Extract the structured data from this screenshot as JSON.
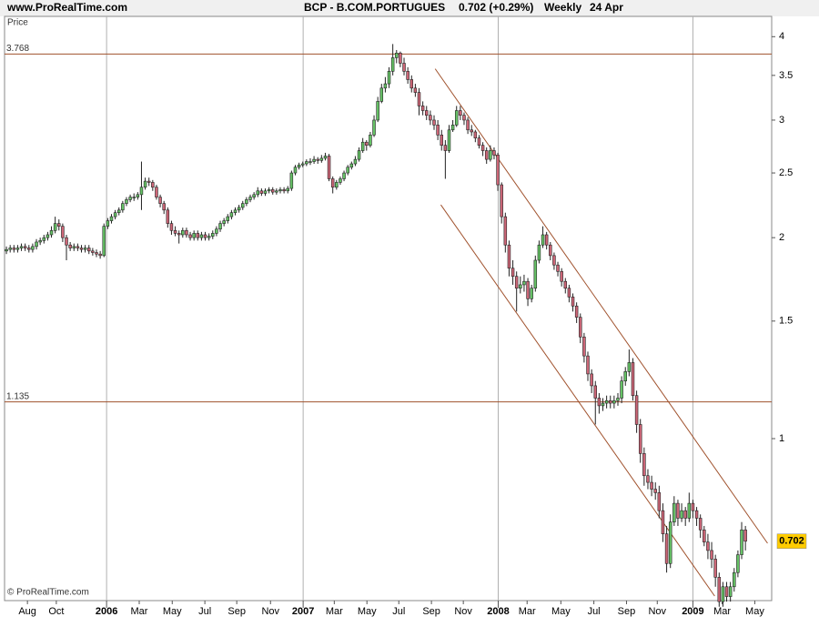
{
  "header": {
    "site": "www.ProRealTime.com",
    "symbol": "BCP - B.COM.PORTUGUES",
    "quote": "0.702 (+0.29%)",
    "period": "Weekly",
    "date": "24 Apr",
    "copyright": "© ProRealTime.com"
  },
  "chart_data": {
    "type": "candlestick",
    "y_label": "Price",
    "log": true,
    "ylim": [
      0.572,
      4.29
    ],
    "yticks": [
      1,
      1.5,
      2,
      2.5,
      3,
      3.5,
      4
    ],
    "xlim": [
      -0.5,
      204
    ],
    "xticks": [
      {
        "value": 5.6,
        "label": "Aug"
      },
      {
        "value": 13.3,
        "label": "Oct"
      },
      {
        "value": 26.7,
        "label": "2006"
      },
      {
        "value": 35.4,
        "label": "Mar"
      },
      {
        "value": 44.2,
        "label": "May"
      },
      {
        "value": 52.9,
        "label": "Jul"
      },
      {
        "value": 61.4,
        "label": "Sep"
      },
      {
        "value": 70.4,
        "label": "Nov"
      },
      {
        "value": 79.1,
        "label": "2007"
      },
      {
        "value": 87.4,
        "label": "Mar"
      },
      {
        "value": 96.1,
        "label": "May"
      },
      {
        "value": 104.6,
        "label": "Jul"
      },
      {
        "value": 113.3,
        "label": "Sep"
      },
      {
        "value": 121.8,
        "label": "Nov"
      },
      {
        "value": 131.1,
        "label": "2008"
      },
      {
        "value": 138.8,
        "label": "Mar"
      },
      {
        "value": 147.8,
        "label": "May"
      },
      {
        "value": 156.6,
        "label": "Jul"
      },
      {
        "value": 165.3,
        "label": "Sep"
      },
      {
        "value": 173.5,
        "label": "Nov"
      },
      {
        "value": 183,
        "label": "2009"
      },
      {
        "value": 190.8,
        "label": "Mar"
      },
      {
        "value": 199.5,
        "label": "May"
      }
    ],
    "up_color": "#66c266",
    "down_color": "#cc6677",
    "line_color": "#a0522d",
    "hlines": [
      3.768,
      1.135
    ],
    "trendlines": [
      {
        "x": [
          114.3,
          202.9
        ],
        "y": [
          3.58,
          0.697
        ]
      },
      {
        "x": [
          115.8,
          188.8
        ],
        "y": [
          2.24,
          0.581
        ]
      }
    ],
    "candles": [
      [
        1.91,
        1.94,
        1.89,
        1.92
      ],
      [
        1.92,
        1.95,
        1.9,
        1.93
      ],
      [
        1.93,
        1.95,
        1.9,
        1.92
      ],
      [
        1.92,
        1.95,
        1.9,
        1.93
      ],
      [
        1.93,
        1.96,
        1.91,
        1.94
      ],
      [
        1.94,
        1.96,
        1.91,
        1.93
      ],
      [
        1.93,
        1.95,
        1.9,
        1.92
      ],
      [
        1.92,
        1.96,
        1.9,
        1.94
      ],
      [
        1.94,
        1.99,
        1.92,
        1.97
      ],
      [
        1.97,
        2.0,
        1.95,
        1.98
      ],
      [
        1.98,
        2.02,
        1.96,
        2.0
      ],
      [
        2.0,
        2.04,
        1.98,
        2.02
      ],
      [
        2.02,
        2.08,
        2.0,
        2.05
      ],
      [
        2.05,
        2.15,
        2.03,
        2.1
      ],
      [
        2.1,
        2.13,
        2.05,
        2.08
      ],
      [
        2.08,
        2.1,
        1.97,
        2.0
      ],
      [
        2.0,
        2.02,
        1.85,
        1.95
      ],
      [
        1.95,
        1.97,
        1.91,
        1.93
      ],
      [
        1.93,
        1.96,
        1.91,
        1.94
      ],
      [
        1.94,
        1.96,
        1.91,
        1.93
      ],
      [
        1.93,
        1.95,
        1.9,
        1.92
      ],
      [
        1.92,
        1.95,
        1.9,
        1.93
      ],
      [
        1.93,
        1.95,
        1.89,
        1.91
      ],
      [
        1.91,
        1.93,
        1.88,
        1.9
      ],
      [
        1.9,
        1.92,
        1.87,
        1.89
      ],
      [
        1.89,
        1.91,
        1.86,
        1.88
      ],
      [
        1.88,
        2.1,
        1.87,
        2.08
      ],
      [
        2.08,
        2.14,
        2.06,
        2.12
      ],
      [
        2.12,
        2.17,
        2.1,
        2.15
      ],
      [
        2.15,
        2.2,
        2.13,
        2.18
      ],
      [
        2.18,
        2.22,
        2.16,
        2.2
      ],
      [
        2.2,
        2.27,
        2.18,
        2.25
      ],
      [
        2.25,
        2.3,
        2.23,
        2.28
      ],
      [
        2.28,
        2.32,
        2.26,
        2.3
      ],
      [
        2.3,
        2.33,
        2.27,
        2.3
      ],
      [
        2.3,
        2.34,
        2.28,
        2.32
      ],
      [
        2.32,
        2.6,
        2.2,
        2.38
      ],
      [
        2.38,
        2.46,
        2.36,
        2.43
      ],
      [
        2.43,
        2.46,
        2.39,
        2.42
      ],
      [
        2.42,
        2.44,
        2.35,
        2.38
      ],
      [
        2.38,
        2.4,
        2.28,
        2.3
      ],
      [
        2.3,
        2.32,
        2.22,
        2.25
      ],
      [
        2.25,
        2.27,
        2.17,
        2.2
      ],
      [
        2.2,
        2.22,
        2.07,
        2.1
      ],
      [
        2.1,
        2.12,
        2.02,
        2.05
      ],
      [
        2.05,
        2.08,
        2.01,
        2.03
      ],
      [
        2.03,
        2.05,
        1.96,
        2.02
      ],
      [
        2.02,
        2.07,
        2.0,
        2.05
      ],
      [
        2.05,
        2.07,
        2.0,
        2.02
      ],
      [
        2.02,
        2.04,
        1.98,
        2.0
      ],
      [
        2.0,
        2.05,
        1.98,
        2.03
      ],
      [
        2.03,
        2.05,
        1.98,
        2.0
      ],
      [
        2.0,
        2.04,
        1.98,
        2.02
      ],
      [
        2.02,
        2.04,
        1.98,
        2.0
      ],
      [
        2.0,
        2.03,
        1.98,
        2.01
      ],
      [
        2.01,
        2.05,
        1.99,
        2.03
      ],
      [
        2.03,
        2.08,
        2.01,
        2.06
      ],
      [
        2.06,
        2.12,
        2.04,
        2.1
      ],
      [
        2.1,
        2.14,
        2.08,
        2.12
      ],
      [
        2.12,
        2.17,
        2.1,
        2.15
      ],
      [
        2.15,
        2.2,
        2.13,
        2.18
      ],
      [
        2.18,
        2.22,
        2.16,
        2.2
      ],
      [
        2.2,
        2.24,
        2.18,
        2.22
      ],
      [
        2.22,
        2.27,
        2.2,
        2.25
      ],
      [
        2.25,
        2.3,
        2.23,
        2.28
      ],
      [
        2.28,
        2.32,
        2.26,
        2.3
      ],
      [
        2.3,
        2.34,
        2.28,
        2.32
      ],
      [
        2.32,
        2.38,
        2.3,
        2.35
      ],
      [
        2.35,
        2.37,
        2.31,
        2.33
      ],
      [
        2.33,
        2.37,
        2.31,
        2.35
      ],
      [
        2.35,
        2.38,
        2.33,
        2.36
      ],
      [
        2.36,
        2.38,
        2.32,
        2.34
      ],
      [
        2.34,
        2.37,
        2.32,
        2.35
      ],
      [
        2.35,
        2.38,
        2.33,
        2.36
      ],
      [
        2.36,
        2.38,
        2.33,
        2.35
      ],
      [
        2.35,
        2.39,
        2.33,
        2.37
      ],
      [
        2.37,
        2.52,
        2.35,
        2.5
      ],
      [
        2.5,
        2.57,
        2.48,
        2.55
      ],
      [
        2.55,
        2.59,
        2.53,
        2.57
      ],
      [
        2.57,
        2.6,
        2.55,
        2.58
      ],
      [
        2.58,
        2.62,
        2.56,
        2.6
      ],
      [
        2.6,
        2.63,
        2.57,
        2.6
      ],
      [
        2.6,
        2.65,
        2.58,
        2.62
      ],
      [
        2.62,
        2.64,
        2.58,
        2.61
      ],
      [
        2.61,
        2.66,
        2.59,
        2.63
      ],
      [
        2.63,
        2.68,
        2.61,
        2.65
      ],
      [
        2.65,
        2.67,
        2.43,
        2.45
      ],
      [
        2.45,
        2.47,
        2.33,
        2.38
      ],
      [
        2.38,
        2.44,
        2.36,
        2.42
      ],
      [
        2.42,
        2.47,
        2.4,
        2.45
      ],
      [
        2.45,
        2.52,
        2.43,
        2.5
      ],
      [
        2.5,
        2.57,
        2.48,
        2.55
      ],
      [
        2.55,
        2.6,
        2.53,
        2.58
      ],
      [
        2.58,
        2.65,
        2.56,
        2.62
      ],
      [
        2.62,
        2.73,
        2.6,
        2.7
      ],
      [
        2.7,
        2.82,
        2.68,
        2.78
      ],
      [
        2.78,
        2.8,
        2.7,
        2.75
      ],
      [
        2.75,
        2.88,
        2.73,
        2.85
      ],
      [
        2.85,
        3.05,
        2.83,
        3.0
      ],
      [
        3.0,
        3.25,
        2.98,
        3.2
      ],
      [
        3.2,
        3.4,
        3.18,
        3.35
      ],
      [
        3.35,
        3.48,
        3.3,
        3.4
      ],
      [
        3.4,
        3.6,
        3.35,
        3.55
      ],
      [
        3.55,
        3.9,
        3.5,
        3.72
      ],
      [
        3.72,
        3.82,
        3.65,
        3.78
      ],
      [
        3.78,
        3.8,
        3.6,
        3.65
      ],
      [
        3.65,
        3.72,
        3.5,
        3.55
      ],
      [
        3.55,
        3.6,
        3.4,
        3.45
      ],
      [
        3.45,
        3.5,
        3.3,
        3.35
      ],
      [
        3.35,
        3.4,
        3.25,
        3.3
      ],
      [
        3.3,
        3.35,
        3.05,
        3.15
      ],
      [
        3.15,
        3.2,
        3.05,
        3.1
      ],
      [
        3.1,
        3.15,
        3.0,
        3.05
      ],
      [
        3.05,
        3.1,
        2.95,
        3.0
      ],
      [
        3.0,
        3.05,
        2.9,
        2.95
      ],
      [
        2.95,
        3.0,
        2.8,
        2.85
      ],
      [
        2.85,
        2.9,
        2.7,
        2.75
      ],
      [
        2.75,
        2.8,
        2.45,
        2.7
      ],
      [
        2.7,
        2.95,
        2.68,
        2.9
      ],
      [
        2.9,
        3.0,
        2.88,
        2.95
      ],
      [
        2.95,
        3.15,
        2.93,
        3.1
      ],
      [
        3.1,
        3.15,
        3.0,
        3.05
      ],
      [
        3.05,
        3.08,
        2.95,
        3.0
      ],
      [
        3.0,
        3.03,
        2.86,
        2.9
      ],
      [
        2.9,
        2.95,
        2.84,
        2.88
      ],
      [
        2.88,
        2.9,
        2.78,
        2.82
      ],
      [
        2.82,
        2.85,
        2.72,
        2.75
      ],
      [
        2.75,
        2.78,
        2.65,
        2.7
      ],
      [
        2.7,
        2.73,
        2.58,
        2.62
      ],
      [
        2.62,
        2.75,
        2.6,
        2.7
      ],
      [
        2.7,
        2.73,
        2.62,
        2.66
      ],
      [
        2.66,
        2.68,
        2.35,
        2.4
      ],
      [
        2.4,
        2.42,
        2.1,
        2.15
      ],
      [
        2.15,
        2.18,
        1.9,
        1.95
      ],
      [
        1.95,
        1.98,
        1.75,
        1.8
      ],
      [
        1.8,
        1.85,
        1.7,
        1.75
      ],
      [
        1.75,
        1.78,
        1.55,
        1.68
      ],
      [
        1.68,
        1.75,
        1.65,
        1.7
      ],
      [
        1.7,
        1.76,
        1.66,
        1.72
      ],
      [
        1.72,
        1.74,
        1.58,
        1.62
      ],
      [
        1.62,
        1.7,
        1.6,
        1.68
      ],
      [
        1.68,
        1.88,
        1.66,
        1.85
      ],
      [
        1.85,
        1.98,
        1.83,
        1.95
      ],
      [
        1.95,
        2.08,
        1.93,
        2.02
      ],
      [
        2.02,
        2.04,
        1.92,
        1.95
      ],
      [
        1.95,
        1.97,
        1.85,
        1.88
      ],
      [
        1.88,
        1.9,
        1.79,
        1.82
      ],
      [
        1.82,
        1.84,
        1.75,
        1.78
      ],
      [
        1.78,
        1.8,
        1.69,
        1.72
      ],
      [
        1.72,
        1.74,
        1.65,
        1.68
      ],
      [
        1.68,
        1.7,
        1.6,
        1.63
      ],
      [
        1.63,
        1.65,
        1.55,
        1.58
      ],
      [
        1.58,
        1.6,
        1.49,
        1.52
      ],
      [
        1.52,
        1.54,
        1.39,
        1.42
      ],
      [
        1.42,
        1.44,
        1.3,
        1.33
      ],
      [
        1.33,
        1.35,
        1.22,
        1.25
      ],
      [
        1.25,
        1.27,
        1.17,
        1.2
      ],
      [
        1.2,
        1.22,
        1.05,
        1.15
      ],
      [
        1.15,
        1.17,
        1.09,
        1.12
      ],
      [
        1.12,
        1.15,
        1.1,
        1.13
      ],
      [
        1.13,
        1.16,
        1.11,
        1.14
      ],
      [
        1.14,
        1.16,
        1.11,
        1.13
      ],
      [
        1.13,
        1.16,
        1.11,
        1.14
      ],
      [
        1.14,
        1.17,
        1.12,
        1.15
      ],
      [
        1.15,
        1.24,
        1.13,
        1.22
      ],
      [
        1.22,
        1.28,
        1.2,
        1.26
      ],
      [
        1.26,
        1.36,
        1.24,
        1.3
      ],
      [
        1.3,
        1.32,
        1.14,
        1.16
      ],
      [
        1.16,
        1.18,
        1.02,
        1.05
      ],
      [
        1.05,
        1.07,
        0.92,
        0.95
      ],
      [
        0.95,
        0.97,
        0.85,
        0.88
      ],
      [
        0.88,
        0.9,
        0.84,
        0.86
      ],
      [
        0.86,
        0.88,
        0.82,
        0.84
      ],
      [
        0.84,
        0.86,
        0.81,
        0.83
      ],
      [
        0.83,
        0.85,
        0.76,
        0.78
      ],
      [
        0.78,
        0.8,
        0.7,
        0.72
      ],
      [
        0.72,
        0.74,
        0.63,
        0.65
      ],
      [
        0.65,
        0.77,
        0.64,
        0.75
      ],
      [
        0.75,
        0.82,
        0.74,
        0.8
      ],
      [
        0.8,
        0.81,
        0.74,
        0.76
      ],
      [
        0.76,
        0.8,
        0.75,
        0.78
      ],
      [
        0.78,
        0.79,
        0.74,
        0.76
      ],
      [
        0.76,
        0.83,
        0.75,
        0.8
      ],
      [
        0.8,
        0.81,
        0.76,
        0.78
      ],
      [
        0.78,
        0.79,
        0.74,
        0.76
      ],
      [
        0.76,
        0.77,
        0.71,
        0.73
      ],
      [
        0.73,
        0.74,
        0.69,
        0.7
      ],
      [
        0.7,
        0.72,
        0.66,
        0.68
      ],
      [
        0.68,
        0.7,
        0.64,
        0.66
      ],
      [
        0.66,
        0.67,
        0.6,
        0.62
      ],
      [
        0.62,
        0.63,
        0.56,
        0.57
      ],
      [
        0.57,
        0.61,
        0.56,
        0.6
      ],
      [
        0.6,
        0.61,
        0.57,
        0.58
      ],
      [
        0.58,
        0.61,
        0.57,
        0.6
      ],
      [
        0.6,
        0.64,
        0.59,
        0.63
      ],
      [
        0.63,
        0.68,
        0.62,
        0.67
      ],
      [
        0.67,
        0.75,
        0.66,
        0.73
      ],
      [
        0.73,
        0.74,
        0.68,
        0.702
      ]
    ]
  }
}
